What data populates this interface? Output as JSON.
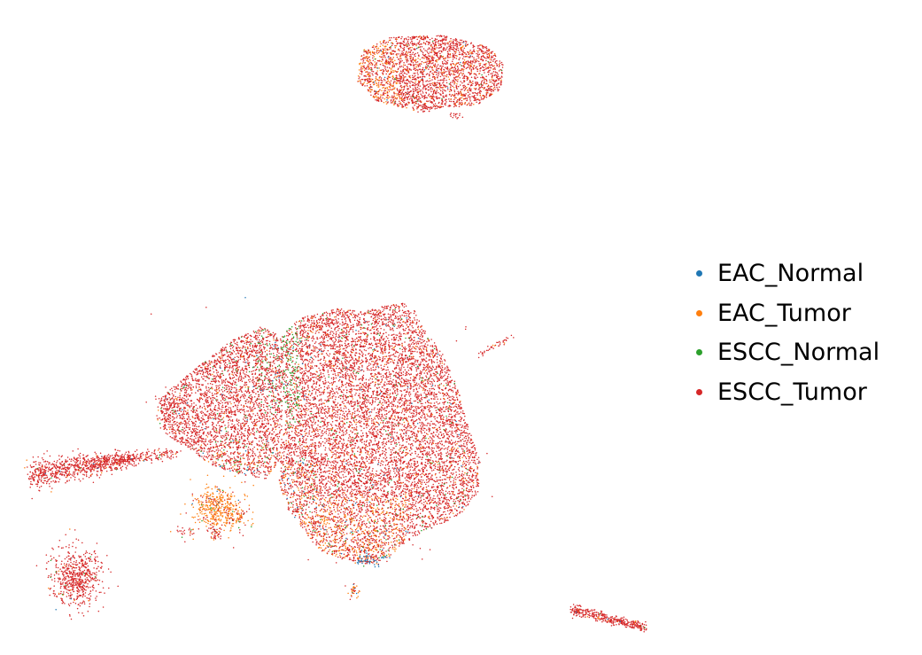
{
  "chart_data": {
    "type": "scatter",
    "title": "",
    "xlabel": "",
    "ylabel": "",
    "axes_visible": false,
    "grid": false,
    "legend_position": "right",
    "series": [
      {
        "name": "EAC_Normal",
        "color": "#1f77b4"
      },
      {
        "name": "EAC_Tumor",
        "color": "#ff7f0e"
      },
      {
        "name": "ESCC_Normal",
        "color": "#2ca02c"
      },
      {
        "name": "ESCC_Tumor",
        "color": "#d62728"
      }
    ]
  },
  "legend": {
    "items": [
      {
        "label": "EAC_Normal",
        "color": "#1f77b4"
      },
      {
        "label": "EAC_Tumor",
        "color": "#ff7f0e"
      },
      {
        "label": "ESCC_Normal",
        "color": "#2ca02c"
      },
      {
        "label": "ESCC_Tumor",
        "color": "#d62728"
      }
    ]
  }
}
